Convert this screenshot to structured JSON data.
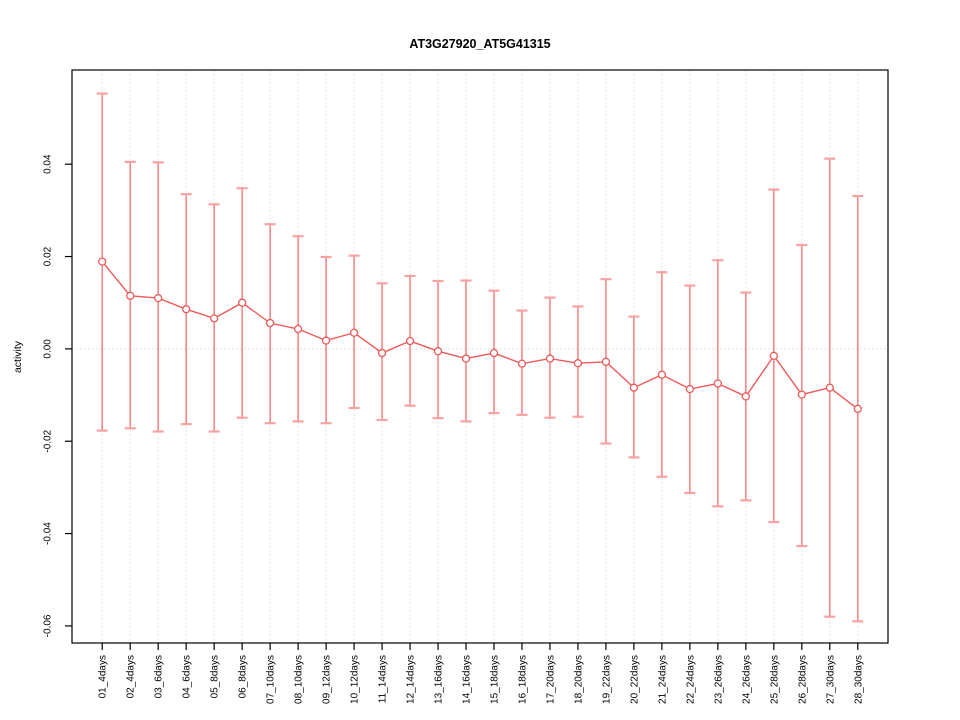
{
  "chart_data": {
    "type": "line",
    "subtype": "error-bar-line-plot",
    "title": "AT3G27920_AT5G41315",
    "xlabel": "",
    "ylabel": "activity",
    "legend_position": "none",
    "categories": [
      "01_4days",
      "02_4days",
      "03_6days",
      "04_6days",
      "05_8days",
      "06_8days",
      "07_10days",
      "08_10days",
      "09_12days",
      "10_12days",
      "11_14days",
      "12_14days",
      "13_16days",
      "14_16days",
      "15_18days",
      "16_18days",
      "17_20days",
      "18_20days",
      "19_22days",
      "20_22days",
      "21_24days",
      "22_24days",
      "23_26days",
      "24_26days",
      "25_28days",
      "26_28days",
      "27_30days",
      "28_30days"
    ],
    "series": [
      {
        "name": "activity",
        "values": [
          0.0189,
          0.0115,
          0.011,
          0.0086,
          0.0066,
          0.01,
          0.0056,
          0.0043,
          0.0018,
          0.0035,
          -0.0009,
          0.0017,
          -0.0005,
          -0.0021,
          -0.0009,
          -0.0032,
          -0.0021,
          -0.0031,
          -0.0028,
          -0.0084,
          -0.0056,
          -0.0087,
          -0.0075,
          -0.0103,
          -0.0015,
          -0.0099,
          -0.0084,
          -0.013
        ],
        "error_high": [
          0.0553,
          0.0405,
          0.0404,
          0.0335,
          0.0313,
          0.0348,
          0.027,
          0.0244,
          0.0199,
          0.0202,
          0.0142,
          0.0158,
          0.0147,
          0.0148,
          0.0126,
          0.0083,
          0.0111,
          0.0092,
          0.0151,
          0.007,
          0.0166,
          0.0137,
          0.0192,
          0.0122,
          0.0345,
          0.0225,
          0.0412,
          0.0331
        ],
        "error_low": [
          -0.0177,
          -0.0172,
          -0.0179,
          -0.0163,
          -0.0179,
          -0.0149,
          -0.0161,
          -0.0157,
          -0.0161,
          -0.0128,
          -0.0154,
          -0.0123,
          -0.015,
          -0.0157,
          -0.0139,
          -0.0143,
          -0.0149,
          -0.0147,
          -0.0205,
          -0.0235,
          -0.0277,
          -0.0312,
          -0.0341,
          -0.0328,
          -0.0375,
          -0.0427,
          -0.058,
          -0.059
        ]
      }
    ],
    "ytick_values": [
      0.04,
      0.02,
      0.0,
      -0.02,
      -0.04,
      -0.06
    ],
    "ytick_labels": [
      "0.04",
      "0.02",
      "0.00",
      "-0.02",
      "-0.04",
      "-0.06"
    ],
    "ylim": [
      -0.0637,
      0.0604
    ],
    "xlim": [
      -0.08,
      29.08
    ],
    "grid": {
      "vertical_gridlines": "dotted",
      "zero_reference_line": "dotted"
    },
    "colors": {
      "error_bar": "#f48080",
      "error_cap": "#f8a2a2",
      "line": "#ee5a5a",
      "point_stroke": "#ee5a5a",
      "point_fill": "#ffffff",
      "grid": "#dbdbdb",
      "axis": "#000000"
    }
  }
}
